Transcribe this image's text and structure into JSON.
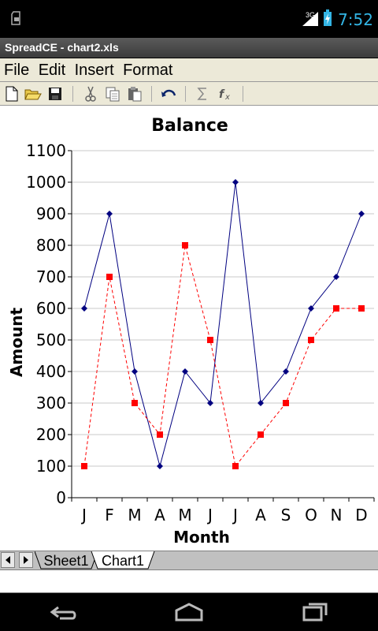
{
  "status_bar": {
    "time": "7:52",
    "network": "3G"
  },
  "app": {
    "title": "SpreadCE - chart2.xls"
  },
  "menu": {
    "items": [
      "File",
      "Edit",
      "Insert",
      "Format"
    ]
  },
  "toolbar": {
    "icons": [
      "new-document-icon",
      "open-folder-icon",
      "save-icon",
      "cut-icon",
      "copy-icon",
      "paste-icon",
      "undo-icon",
      "sum-icon",
      "function-icon"
    ]
  },
  "chart_data": {
    "type": "line",
    "title": "Balance",
    "xlabel": "Month",
    "ylabel": "Amount",
    "categories": [
      "J",
      "F",
      "M",
      "A",
      "M",
      "J",
      "J",
      "A",
      "S",
      "O",
      "N",
      "D"
    ],
    "ylim": [
      0,
      1100
    ],
    "yticks": [
      0,
      100,
      200,
      300,
      400,
      500,
      600,
      700,
      800,
      900,
      1000,
      1100
    ],
    "grid": true,
    "series": [
      {
        "values": [
          600,
          900,
          400,
          100,
          400,
          300,
          1000,
          300,
          400,
          600,
          700,
          900
        ],
        "color": "#000080",
        "line_style": "solid",
        "marker": "diamond"
      },
      {
        "values": [
          100,
          700,
          300,
          200,
          800,
          500,
          100,
          200,
          300,
          500,
          600,
          600
        ],
        "color": "#ff0000",
        "line_style": "dashed",
        "marker": "square"
      }
    ]
  },
  "sheet_tabs": {
    "tabs": [
      "Sheet1",
      "Chart1"
    ],
    "active": "Chart1"
  },
  "nav_bar": {
    "buttons": [
      "back-icon",
      "home-icon",
      "recent-apps-icon"
    ]
  }
}
